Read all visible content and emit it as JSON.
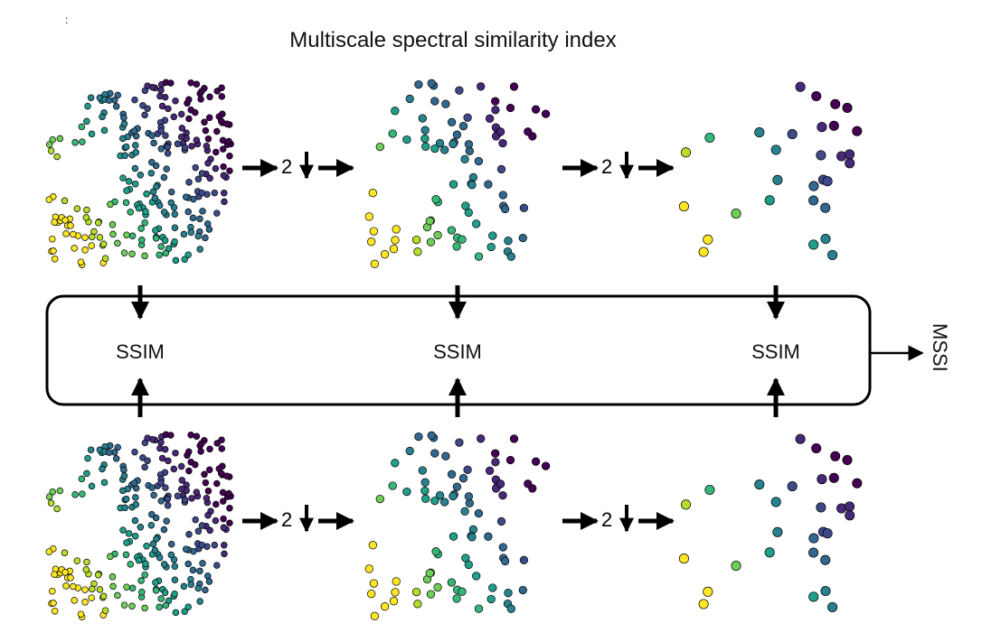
{
  "title": "Multiscale spectral similarity index",
  "corner_mark": ":",
  "downsample_factor": "2",
  "ssim_label": "SSIM",
  "output_label": "MSSI",
  "colors": {
    "yellow": "#fde725",
    "yellow_green": "#b5de2b",
    "green": "#6ece58",
    "green_teal": "#35b779",
    "teal": "#1f9e89",
    "teal_blue": "#26828e",
    "blue": "#31688e",
    "indigo": "#3e4989",
    "purple": "#482878",
    "dark_purple": "#440154",
    "stroke": "#000000",
    "background": "#ffffff"
  }
}
